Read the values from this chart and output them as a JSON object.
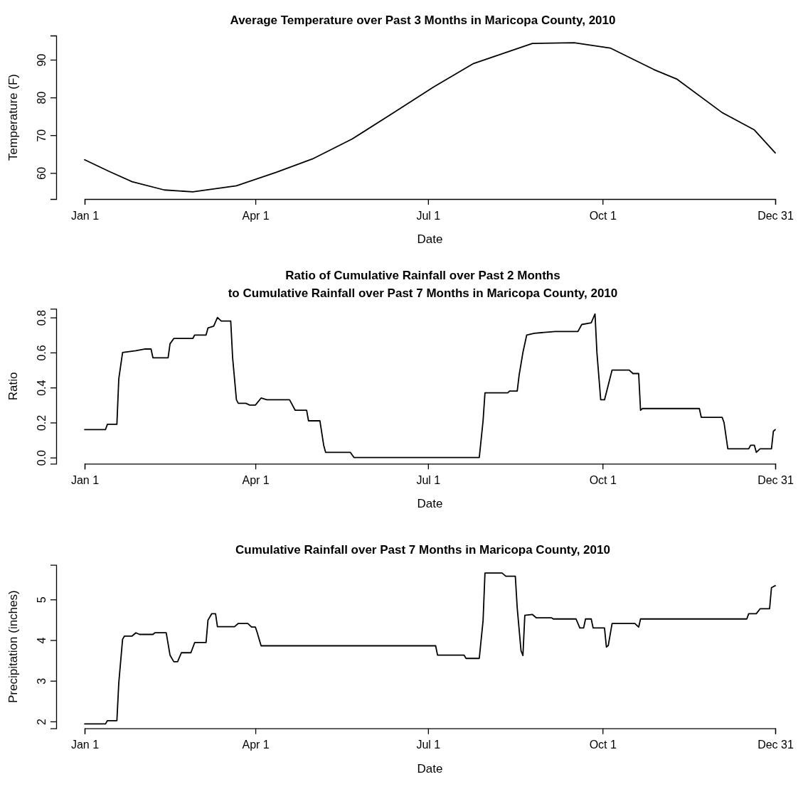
{
  "chart_data": [
    {
      "type": "line",
      "title": "Average Temperature over Past 3 Months in Maricopa County, 2010",
      "xlabel": "Date",
      "ylabel": "Temperature (F)",
      "color": "#000000",
      "x": [
        "2010-01-01",
        "2010-01-14",
        "2010-01-26",
        "2010-02-12",
        "2010-02-27",
        "2010-03-22",
        "2010-04-12",
        "2010-05-01",
        "2010-05-22",
        "2010-06-13",
        "2010-07-04",
        "2010-07-25",
        "2010-08-25",
        "2010-09-16",
        "2010-10-05",
        "2010-10-28",
        "2010-11-09",
        "2010-12-03",
        "2010-12-20",
        "2010-12-31"
      ],
      "values": [
        63.5,
        60.4,
        57.7,
        55.5,
        55.0,
        56.6,
        60.2,
        63.7,
        69.0,
        76.0,
        82.8,
        89.0,
        94.3,
        94.5,
        93.1,
        87.4,
        84.9,
        76.0,
        71.4,
        65.3
      ],
      "xlim": [
        "2010-01-01",
        "2010-12-31"
      ],
      "ylim": [
        53.1,
        96.4
      ],
      "xticks": [
        {
          "value": "2010-01-01",
          "label": "Jan 1"
        },
        {
          "value": "2010-04-01",
          "label": "Apr 1"
        },
        {
          "value": "2010-07-01",
          "label": "Jul 1"
        },
        {
          "value": "2010-10-01",
          "label": "Oct 1"
        },
        {
          "value": "2010-12-31",
          "label": "Dec 31"
        }
      ],
      "yticks": [
        60,
        70,
        80,
        90
      ]
    },
    {
      "type": "line",
      "title": "Ratio of Cumulative Rainfall over Past 2 Months\nto Cumulative Rainfall over Past 7 Months in Maricopa County, 2010",
      "xlabel": "Date",
      "ylabel": "Ratio",
      "color": "#000000",
      "x": [
        "2010-01-01",
        "2010-01-12",
        "2010-01-13",
        "2010-01-18",
        "2010-01-19",
        "2010-01-21",
        "2010-01-28",
        "2010-02-02",
        "2010-02-05",
        "2010-02-06",
        "2010-02-14",
        "2010-02-15",
        "2010-02-17",
        "2010-02-27",
        "2010-02-28",
        "2010-03-06",
        "2010-03-07",
        "2010-03-10",
        "2010-03-12",
        "2010-03-14",
        "2010-03-19",
        "2010-03-20",
        "2010-03-22",
        "2010-03-23",
        "2010-03-27",
        "2010-03-29",
        "2010-04-01",
        "2010-04-04",
        "2010-04-07",
        "2010-04-19",
        "2010-04-22",
        "2010-04-28",
        "2010-04-29",
        "2010-05-05",
        "2010-05-07",
        "2010-05-08",
        "2010-05-21",
        "2010-05-23",
        "2010-07-28",
        "2010-07-30",
        "2010-07-31",
        "2010-08-12",
        "2010-08-13",
        "2010-08-17",
        "2010-08-18",
        "2010-08-20",
        "2010-08-22",
        "2010-08-26",
        "2010-09-06",
        "2010-09-18",
        "2010-09-20",
        "2010-09-25",
        "2010-09-27",
        "2010-09-28",
        "2010-09-30",
        "2010-10-02",
        "2010-10-06",
        "2010-10-15",
        "2010-10-17",
        "2010-10-20",
        "2010-10-21",
        "2010-10-22",
        "2010-11-21",
        "2010-11-22",
        "2010-12-03",
        "2010-12-04",
        "2010-12-06",
        "2010-12-17",
        "2010-12-18",
        "2010-12-20",
        "2010-12-21",
        "2010-12-23",
        "2010-12-29",
        "2010-12-30",
        "2010-12-31"
      ],
      "values": [
        0.16,
        0.16,
        0.19,
        0.19,
        0.45,
        0.6,
        0.61,
        0.62,
        0.62,
        0.57,
        0.57,
        0.65,
        0.68,
        0.68,
        0.7,
        0.7,
        0.74,
        0.75,
        0.8,
        0.78,
        0.78,
        0.57,
        0.33,
        0.31,
        0.31,
        0.3,
        0.3,
        0.34,
        0.33,
        0.33,
        0.27,
        0.27,
        0.21,
        0.21,
        0.07,
        0.03,
        0.03,
        0,
        0,
        0.21,
        0.37,
        0.37,
        0.38,
        0.38,
        0.47,
        0.6,
        0.7,
        0.71,
        0.72,
        0.72,
        0.76,
        0.77,
        0.82,
        0.6,
        0.33,
        0.33,
        0.5,
        0.5,
        0.48,
        0.48,
        0.27,
        0.28,
        0.28,
        0.23,
        0.23,
        0.2,
        0.05,
        0.05,
        0.07,
        0.07,
        0.03,
        0.05,
        0.05,
        0.15,
        0.16
      ],
      "xlim": [
        "2010-01-01",
        "2010-12-31"
      ],
      "ylim": [
        -0.035,
        0.85
      ],
      "xticks": [
        {
          "value": "2010-01-01",
          "label": "Jan 1"
        },
        {
          "value": "2010-04-01",
          "label": "Apr 1"
        },
        {
          "value": "2010-07-01",
          "label": "Jul 1"
        },
        {
          "value": "2010-10-01",
          "label": "Oct 1"
        },
        {
          "value": "2010-12-31",
          "label": "Dec 31"
        }
      ],
      "yticks": [
        {
          "value": 0,
          "label": "0.0"
        },
        {
          "value": 0.2,
          "label": "0.2"
        },
        {
          "value": 0.4,
          "label": "0.4"
        },
        {
          "value": 0.6,
          "label": "0.6"
        },
        {
          "value": 0.8,
          "label": "0.8"
        }
      ]
    },
    {
      "type": "line",
      "title": "Cumulative Rainfall over Past 7 Months in Maricopa County, 2010",
      "xlabel": "Date",
      "ylabel": "Precipitation (inches)",
      "color": "#000000",
      "x": [
        "2010-01-01",
        "2010-01-12",
        "2010-01-13",
        "2010-01-18",
        "2010-01-19",
        "2010-01-21",
        "2010-01-22",
        "2010-01-26",
        "2010-01-28",
        "2010-01-30",
        "2010-02-06",
        "2010-02-07",
        "2010-02-13",
        "2010-02-15",
        "2010-02-17",
        "2010-02-19",
        "2010-02-21",
        "2010-02-26",
        "2010-02-28",
        "2010-03-06",
        "2010-03-07",
        "2010-03-09",
        "2010-03-11",
        "2010-03-12",
        "2010-03-21",
        "2010-03-23",
        "2010-03-28",
        "2010-03-30",
        "2010-04-01",
        "2010-04-02",
        "2010-04-04",
        "2010-07-05",
        "2010-07-06",
        "2010-07-20",
        "2010-07-21",
        "2010-07-28",
        "2010-07-30",
        "2010-07-31",
        "2010-08-09",
        "2010-08-11",
        "2010-08-16",
        "2010-08-17",
        "2010-08-19",
        "2010-08-20",
        "2010-08-21",
        "2010-08-25",
        "2010-08-27",
        "2010-09-04",
        "2010-09-05",
        "2010-09-17",
        "2010-09-19",
        "2010-09-21",
        "2010-09-22",
        "2010-09-25",
        "2010-09-26",
        "2010-10-02",
        "2010-10-03",
        "2010-10-04",
        "2010-10-06",
        "2010-10-18",
        "2010-10-20",
        "2010-10-21",
        "2010-12-16",
        "2010-12-17",
        "2010-12-21",
        "2010-12-23",
        "2010-12-28",
        "2010-12-29",
        "2010-12-31"
      ],
      "values": [
        1.94,
        1.94,
        2.02,
        2.02,
        2.95,
        4.02,
        4.1,
        4.1,
        4.18,
        4.14,
        4.14,
        4.18,
        4.18,
        3.63,
        3.47,
        3.47,
        3.69,
        3.69,
        3.94,
        3.94,
        4.49,
        4.65,
        4.65,
        4.33,
        4.33,
        4.41,
        4.41,
        4.32,
        4.32,
        4.18,
        3.86,
        3.86,
        3.63,
        3.63,
        3.55,
        3.55,
        4.48,
        5.65,
        5.65,
        5.57,
        5.57,
        4.79,
        3.74,
        3.62,
        4.61,
        4.63,
        4.55,
        4.55,
        4.52,
        4.52,
        4.3,
        4.3,
        4.52,
        4.52,
        4.3,
        4.3,
        3.83,
        3.87,
        4.41,
        4.41,
        4.32,
        4.52,
        4.52,
        4.65,
        4.65,
        4.77,
        4.77,
        5.29,
        5.34
      ],
      "xlim": [
        "2010-01-01",
        "2010-12-31"
      ],
      "ylim": [
        1.83,
        5.85
      ],
      "xticks": [
        {
          "value": "2010-01-01",
          "label": "Jan 1"
        },
        {
          "value": "2010-04-01",
          "label": "Apr 1"
        },
        {
          "value": "2010-07-01",
          "label": "Jul 1"
        },
        {
          "value": "2010-10-01",
          "label": "Oct 1"
        },
        {
          "value": "2010-12-31",
          "label": "Dec 31"
        }
      ],
      "yticks": [
        2,
        3,
        4,
        5
      ]
    }
  ]
}
